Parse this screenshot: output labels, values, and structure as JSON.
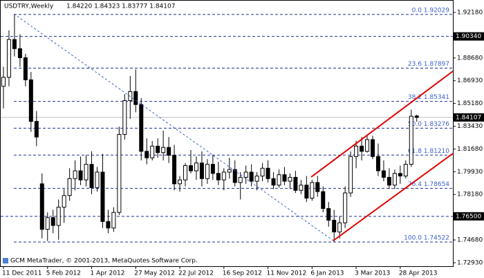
{
  "chart_data": {
    "type": "candlestick",
    "title": "USDTRY,Weekly",
    "header_values": "1.84220 1.84323 1.83777 1.84107",
    "footer": "GCM MetaTrader, © 2001-2013, MetaQuotes Software Corp.",
    "categories": [
      "11 Dec 2011",
      null,
      null,
      null,
      null,
      null,
      null,
      null,
      "5 Feb 2012",
      null,
      null,
      null,
      null,
      null,
      null,
      null,
      "1 Apr 2012",
      null,
      null,
      null,
      null,
      null,
      null,
      null,
      "27 May 2012",
      null,
      null,
      null,
      null,
      null,
      null,
      null,
      "22 Jul 2012",
      null,
      null,
      null,
      null,
      null,
      null,
      null,
      "16 Sep 2012",
      null,
      null,
      null,
      null,
      null,
      null,
      null,
      "11 Nov 2012",
      null,
      null,
      null,
      null,
      null,
      null,
      null,
      "6 Jan 2013",
      null,
      null,
      null,
      null,
      null,
      null,
      null,
      "3 Mar 2013",
      null,
      null,
      null,
      null,
      null,
      null,
      null,
      "28 Apr 2013",
      null,
      null,
      null
    ],
    "open": [
      1.865,
      1.872,
      1.901,
      1.894,
      1.887,
      1.87,
      1.838,
      1.79,
      1.755,
      1.764,
      1.758,
      1.772,
      1.781,
      1.794,
      1.8,
      1.793,
      1.805,
      1.787,
      1.799,
      1.761,
      1.756,
      1.768,
      1.828,
      1.854,
      1.861,
      1.851,
      1.815,
      1.81,
      1.819,
      1.814,
      1.818,
      1.812,
      1.79,
      1.793,
      1.804,
      1.8,
      1.806,
      1.794,
      1.805,
      1.798,
      1.793,
      1.799,
      1.801,
      1.791,
      1.795,
      1.799,
      1.792,
      1.796,
      1.802,
      1.794,
      1.789,
      1.797,
      1.792,
      1.795,
      1.785,
      1.789,
      1.779,
      1.791,
      1.784,
      1.771,
      1.762,
      1.753,
      1.76,
      1.783,
      1.811,
      1.819,
      1.815,
      1.824,
      1.811,
      1.8,
      1.795,
      1.789,
      1.798,
      1.796,
      1.805,
      1.8422
    ],
    "high": [
      1.88,
      1.908,
      1.92029,
      1.905,
      1.89,
      1.876,
      1.846,
      1.798,
      1.768,
      1.77,
      1.778,
      1.786,
      1.802,
      1.808,
      1.811,
      1.812,
      1.815,
      1.803,
      1.813,
      1.77,
      1.772,
      1.834,
      1.859,
      1.873,
      1.878,
      1.856,
      1.825,
      1.823,
      1.825,
      1.831,
      1.826,
      1.82,
      1.796,
      1.806,
      1.816,
      1.811,
      1.815,
      1.809,
      1.812,
      1.807,
      1.802,
      1.81,
      1.808,
      1.799,
      1.804,
      1.805,
      1.799,
      1.806,
      1.808,
      1.799,
      1.801,
      1.803,
      1.798,
      1.8,
      1.793,
      1.796,
      1.793,
      1.796,
      1.788,
      1.776,
      1.77,
      1.765,
      1.788,
      1.815,
      1.823,
      1.826,
      1.828,
      1.827,
      1.821,
      1.808,
      1.802,
      1.801,
      1.804,
      1.808,
      1.847,
      1.8432
    ],
    "low": [
      1.848,
      1.865,
      1.888,
      1.88,
      1.865,
      1.83,
      1.819,
      1.748,
      1.746,
      1.752,
      1.747,
      1.76,
      1.777,
      1.785,
      1.789,
      1.788,
      1.782,
      1.784,
      1.756,
      1.752,
      1.753,
      1.766,
      1.824,
      1.84,
      1.845,
      1.808,
      1.805,
      1.808,
      1.81,
      1.808,
      1.806,
      1.785,
      1.784,
      1.788,
      1.798,
      1.793,
      1.788,
      1.79,
      1.793,
      1.789,
      1.785,
      1.794,
      1.788,
      1.778,
      1.79,
      1.788,
      1.785,
      1.792,
      1.791,
      1.786,
      1.787,
      1.789,
      1.786,
      1.783,
      1.782,
      1.776,
      1.777,
      1.78,
      1.768,
      1.757,
      1.74522,
      1.748,
      1.756,
      1.78,
      1.802,
      1.808,
      1.814,
      1.809,
      1.796,
      1.792,
      1.786,
      1.786,
      1.79,
      1.794,
      1.803,
      1.8378
    ],
    "close": [
      1.872,
      1.901,
      1.894,
      1.887,
      1.87,
      1.838,
      1.826,
      1.755,
      1.764,
      1.758,
      1.772,
      1.781,
      1.794,
      1.8,
      1.793,
      1.805,
      1.787,
      1.799,
      1.761,
      1.756,
      1.768,
      1.828,
      1.854,
      1.861,
      1.851,
      1.815,
      1.81,
      1.819,
      1.814,
      1.818,
      1.812,
      1.79,
      1.793,
      1.804,
      1.8,
      1.806,
      1.794,
      1.805,
      1.798,
      1.793,
      1.799,
      1.801,
      1.791,
      1.795,
      1.799,
      1.792,
      1.796,
      1.802,
      1.794,
      1.789,
      1.797,
      1.792,
      1.795,
      1.785,
      1.789,
      1.779,
      1.791,
      1.784,
      1.771,
      1.762,
      1.753,
      1.76,
      1.783,
      1.811,
      1.819,
      1.815,
      1.824,
      1.811,
      1.8,
      1.795,
      1.789,
      1.798,
      1.796,
      1.805,
      1.842,
      1.84107
    ],
    "ylim": [
      1.7266,
      1.9314
    ],
    "yticks": [
      {
        "value": 1.9218,
        "label": "1.92180"
      },
      {
        "value": 1.8868,
        "label": "1.88680"
      },
      {
        "value": 1.8693,
        "label": "1.86930"
      },
      {
        "value": 1.8518,
        "label": "1.85180"
      },
      {
        "value": 1.8343,
        "label": "1.83430"
      },
      {
        "value": 1.8168,
        "label": "1.81680"
      },
      {
        "value": 1.7993,
        "label": "1.79930"
      },
      {
        "value": 1.7818,
        "label": "1.78180"
      },
      {
        "value": 1.7468,
        "label": "1.74680"
      },
      {
        "value": 1.7293,
        "label": "1.72930"
      }
    ],
    "fib_levels": [
      {
        "value": 1.92029,
        "label": "0.0 1.92029"
      },
      {
        "value": 1.87897,
        "label": "23.6 1.87897"
      },
      {
        "value": 1.85341,
        "label": "38.2 1.85341"
      },
      {
        "value": 1.83276,
        "label": "50.0 1.83276"
      },
      {
        "value": 1.8121,
        "label": "61.8 1.81210"
      },
      {
        "value": 1.78654,
        "label": "76.4 1.78654"
      },
      {
        "value": 1.74522,
        "label": "100.0 1.74522"
      }
    ],
    "price_labels": [
      {
        "value": 1.9034,
        "label": "1.90340"
      },
      {
        "value": 1.84107,
        "label": "1.84107"
      },
      {
        "value": 1.765,
        "label": "1.76500"
      }
    ],
    "bid_line_color": "#c0c0c0",
    "level_color": "#1f2f8f"
  }
}
